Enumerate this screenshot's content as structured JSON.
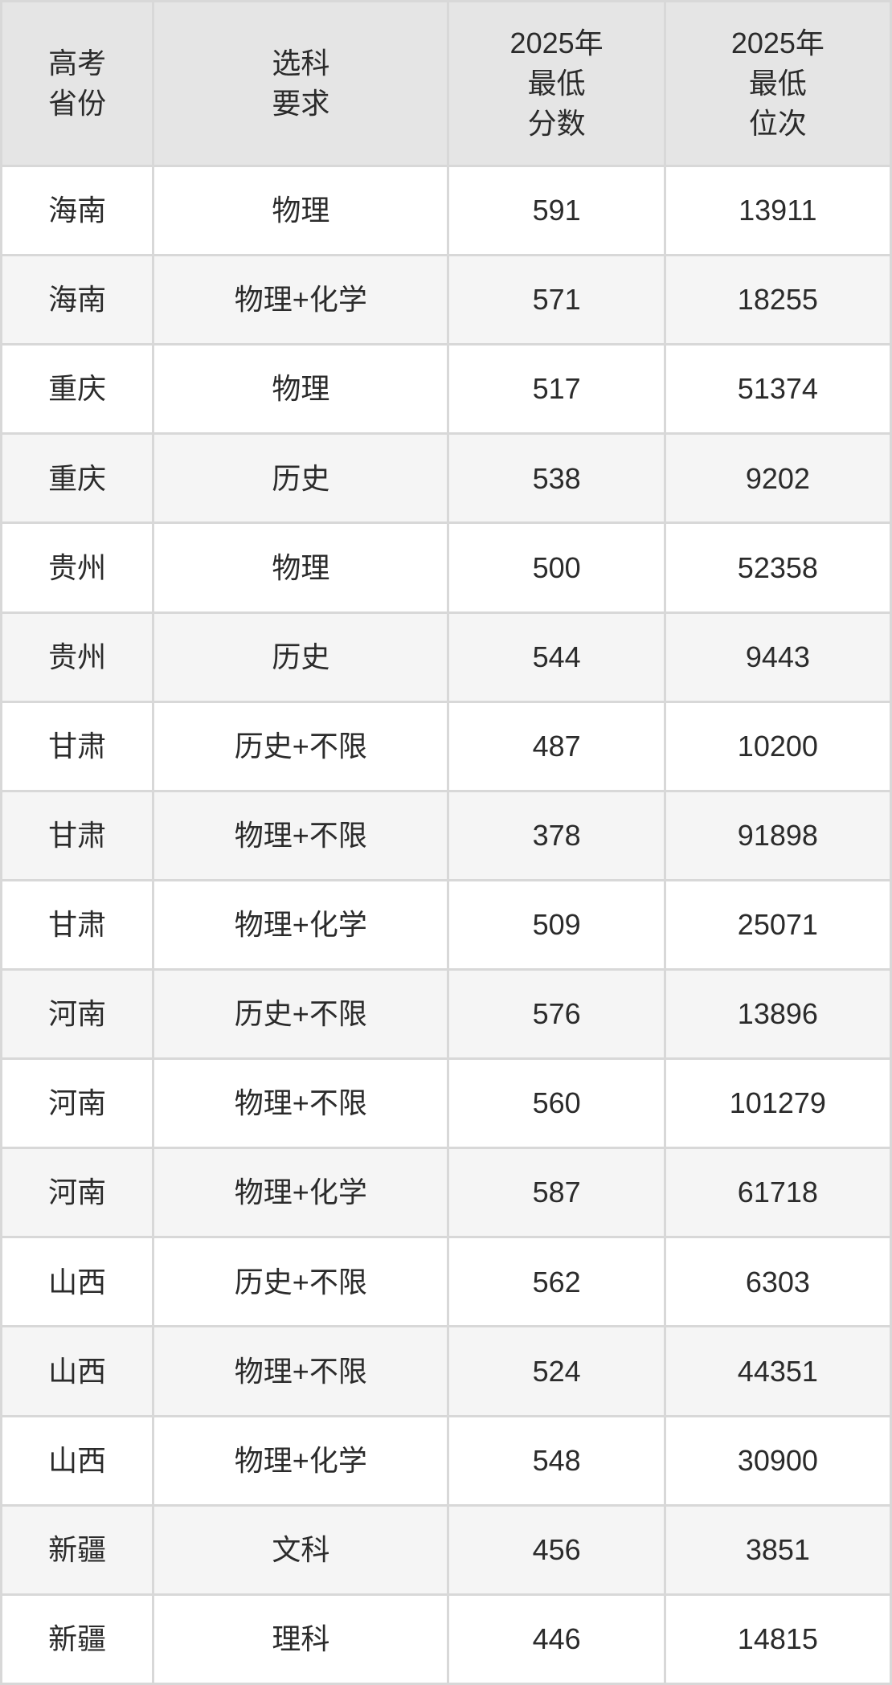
{
  "table": {
    "headers": [
      {
        "id": "province",
        "label": "高考\n省份"
      },
      {
        "id": "requirement",
        "label": "选科\n要求"
      },
      {
        "id": "score",
        "label": "2025年\n最低\n分数"
      },
      {
        "id": "rank",
        "label": "2025年\n最低\n位次"
      }
    ],
    "rows": [
      {
        "province": "海南",
        "requirement": "物理",
        "score": "591",
        "rank": "13911"
      },
      {
        "province": "海南",
        "requirement": "物理+化学",
        "score": "571",
        "rank": "18255"
      },
      {
        "province": "重庆",
        "requirement": "物理",
        "score": "517",
        "rank": "51374"
      },
      {
        "province": "重庆",
        "requirement": "历史",
        "score": "538",
        "rank": "9202"
      },
      {
        "province": "贵州",
        "requirement": "物理",
        "score": "500",
        "rank": "52358"
      },
      {
        "province": "贵州",
        "requirement": "历史",
        "score": "544",
        "rank": "9443"
      },
      {
        "province": "甘肃",
        "requirement": "历史+不限",
        "score": "487",
        "rank": "10200"
      },
      {
        "province": "甘肃",
        "requirement": "物理+不限",
        "score": "378",
        "rank": "91898"
      },
      {
        "province": "甘肃",
        "requirement": "物理+化学",
        "score": "509",
        "rank": "25071"
      },
      {
        "province": "河南",
        "requirement": "历史+不限",
        "score": "576",
        "rank": "13896"
      },
      {
        "province": "河南",
        "requirement": "物理+不限",
        "score": "560",
        "rank": "101279"
      },
      {
        "province": "河南",
        "requirement": "物理+化学",
        "score": "587",
        "rank": "61718"
      },
      {
        "province": "山西",
        "requirement": "历史+不限",
        "score": "562",
        "rank": "6303"
      },
      {
        "province": "山西",
        "requirement": "物理+不限",
        "score": "524",
        "rank": "44351"
      },
      {
        "province": "山西",
        "requirement": "物理+化学",
        "score": "548",
        "rank": "30900"
      },
      {
        "province": "新疆",
        "requirement": "文科",
        "score": "456",
        "rank": "3851"
      },
      {
        "province": "新疆",
        "requirement": "理科",
        "score": "446",
        "rank": "14815"
      }
    ]
  },
  "colors": {
    "header_bg": "#e5e5e5",
    "row_odd_bg": "#ffffff",
    "row_even_bg": "#f5f5f5",
    "divider": "#d8d8d8",
    "text": "#2b2b2b"
  },
  "chart_data": {
    "type": "table",
    "columns": [
      "高考省份",
      "选科要求",
      "2025年最低分数",
      "2025年最低位次"
    ],
    "rows": [
      [
        "海南",
        "物理",
        591,
        13911
      ],
      [
        "海南",
        "物理+化学",
        571,
        18255
      ],
      [
        "重庆",
        "物理",
        517,
        51374
      ],
      [
        "重庆",
        "历史",
        538,
        9202
      ],
      [
        "贵州",
        "物理",
        500,
        52358
      ],
      [
        "贵州",
        "历史",
        544,
        9443
      ],
      [
        "甘肃",
        "历史+不限",
        487,
        10200
      ],
      [
        "甘肃",
        "物理+不限",
        378,
        91898
      ],
      [
        "甘肃",
        "物理+化学",
        509,
        25071
      ],
      [
        "河南",
        "历史+不限",
        576,
        13896
      ],
      [
        "河南",
        "物理+不限",
        560,
        101279
      ],
      [
        "河南",
        "物理+化学",
        587,
        61718
      ],
      [
        "山西",
        "历史+不限",
        562,
        6303
      ],
      [
        "山西",
        "物理+不限",
        524,
        44351
      ],
      [
        "山西",
        "物理+化学",
        548,
        30900
      ],
      [
        "新疆",
        "文科",
        456,
        3851
      ],
      [
        "新疆",
        "理科",
        446,
        14815
      ]
    ]
  }
}
